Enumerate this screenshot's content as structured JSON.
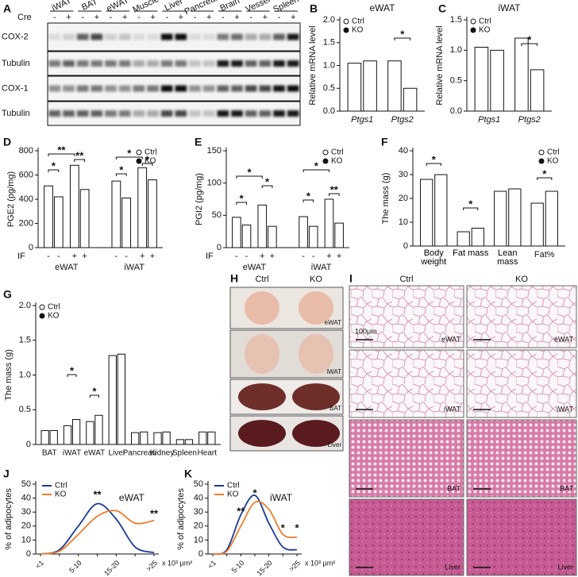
{
  "blot": {
    "panel": "A",
    "tissues": [
      "iWAT",
      "BAT",
      "eWAT",
      "Muscle",
      "Liver",
      "Pancreas",
      "Brain",
      "Vessel",
      "Spleen"
    ],
    "cre_label": "Cre",
    "cre": [
      "-",
      "+"
    ],
    "rows": [
      "COX-2",
      "Tubulin",
      "COX-1",
      "Tubulin"
    ]
  },
  "chart_data": [
    {
      "type": "bar",
      "panel": "B",
      "title": "eWAT",
      "y_label": "Relative mRNA level",
      "categories": [
        "Ptgs1",
        "Ptgs2"
      ],
      "category_style": "italic",
      "series": [
        {
          "name": "Ctrl",
          "marker": "open",
          "values": [
            1.05,
            1.1
          ]
        },
        {
          "name": "KO",
          "marker": "filled",
          "values": [
            1.1,
            0.5
          ]
        }
      ],
      "ylim": [
        0,
        2
      ],
      "yticks": [
        {
          "value": 0,
          "label": "0.0"
        },
        0.5,
        {
          "value": 1,
          "label": "1.0"
        },
        1.5,
        {
          "value": 2,
          "label": "2.0"
        }
      ],
      "legend": "upper left",
      "annotations": [
        "*"
      ]
    },
    {
      "type": "bar",
      "panel": "C",
      "title": "iWAT",
      "y_label": "Relative mRNA level",
      "categories": [
        "Ptgs1",
        "Ptgs2"
      ],
      "category_style": "italic",
      "series": [
        {
          "name": "Ctrl",
          "marker": "open",
          "values": [
            1.05,
            1.2
          ]
        },
        {
          "name": "KO",
          "marker": "filled",
          "values": [
            1.0,
            0.68
          ]
        }
      ],
      "ylim": [
        0,
        1.5
      ],
      "yticks": [
        {
          "value": 0,
          "label": "0.0"
        },
        0.5,
        {
          "value": 1,
          "label": "1.0"
        },
        1.5
      ],
      "legend": "upper left",
      "annotations": [
        "*"
      ]
    },
    {
      "type": "bar",
      "panel": "D",
      "y_label": "PGE2 (pg/mg)",
      "x_row_label": "IF",
      "categories": [
        "-",
        "+",
        "-",
        "+"
      ],
      "groups": [
        "eWAT",
        "iWAT"
      ],
      "series": [
        {
          "name": "Ctrl",
          "marker": "open",
          "values": [
            510,
            680,
            550,
            660
          ]
        },
        {
          "name": "KO",
          "marker": "filled",
          "values": [
            420,
            480,
            410,
            560
          ]
        }
      ],
      "ylim": [
        0,
        800
      ],
      "yticks": [
        0,
        200,
        400,
        600,
        800
      ],
      "legend": "upper right",
      "annotations": [
        "*",
        "**",
        "**",
        "*",
        "*",
        "*"
      ]
    },
    {
      "type": "bar",
      "panel": "E",
      "y_label": "PGI2 (pg/mg)",
      "x_row_label": "IF",
      "categories": [
        "-",
        "+",
        "-",
        "+"
      ],
      "groups": [
        "eWAT",
        "iWAT"
      ],
      "series": [
        {
          "name": "Ctrl",
          "marker": "open",
          "values": [
            47,
            66,
            48,
            75
          ]
        },
        {
          "name": "KO",
          "marker": "filled",
          "values": [
            35,
            33,
            33,
            38
          ]
        }
      ],
      "ylim": [
        0,
        150
      ],
      "yticks": [
        0,
        50,
        100,
        150
      ],
      "legend": "upper right",
      "annotations": [
        "*",
        "*",
        "*",
        "*",
        "*",
        "**"
      ]
    },
    {
      "type": "bar",
      "panel": "F",
      "y_label": "The mass (g)",
      "categories": [
        "Body weight",
        "Fat mass",
        "Lean mass",
        "Fat%"
      ],
      "series": [
        {
          "name": "Ctrl",
          "marker": "open",
          "values": [
            28,
            6,
            23,
            18
          ]
        },
        {
          "name": "KO",
          "marker": "filled",
          "values": [
            30,
            7.5,
            24,
            23
          ]
        }
      ],
      "ylim": [
        0,
        40
      ],
      "yticks": [
        0,
        10,
        20,
        30,
        40
      ],
      "legend": "upper right",
      "annotations": [
        "*",
        "*",
        "*"
      ]
    },
    {
      "type": "bar",
      "panel": "G",
      "y_label": "The mass (g)",
      "categories": [
        "BAT",
        "iWAT",
        "eWAT",
        "Liver",
        "Pancreas",
        "Kidney",
        "Spleen",
        "Heart"
      ],
      "series": [
        {
          "name": "Ctrl",
          "marker": "open",
          "values": [
            0.2,
            0.27,
            0.33,
            1.28,
            0.17,
            0.17,
            0.07,
            0.18
          ]
        },
        {
          "name": "KO",
          "marker": "filled",
          "values": [
            0.2,
            0.36,
            0.42,
            1.3,
            0.18,
            0.18,
            0.07,
            0.18
          ]
        }
      ],
      "ylim": [
        0,
        2
      ],
      "yticks": [
        0,
        0.5,
        {
          "value": 1,
          "label": "1.0"
        },
        1.5,
        {
          "value": 2,
          "label": "2.0"
        }
      ],
      "legend": "upper left",
      "annotations": [
        "*",
        "*"
      ]
    },
    {
      "type": "line",
      "panel": "J",
      "title": "eWAT",
      "y_label": "% of adipocytes",
      "x_label": "x 10³ μm²",
      "categories": [
        "<1",
        null,
        "5-10",
        null,
        "15-20",
        null,
        ">25"
      ],
      "series": [
        {
          "name": "Ctrl",
          "color": "#1c3a96",
          "values": [
            0,
            3,
            20,
            36,
            25,
            5,
            1
          ]
        },
        {
          "name": "KO",
          "color": "#f07b2c",
          "values": [
            0,
            2,
            14,
            27,
            31,
            22,
            24
          ]
        }
      ],
      "ylim": [
        0,
        50
      ],
      "yticks": [
        0,
        10,
        20,
        30,
        40,
        50
      ],
      "legend": "upper left",
      "annotations": [
        "**",
        "**"
      ]
    },
    {
      "type": "line",
      "panel": "K",
      "title": "iWAT",
      "y_label": "% of adipocytes",
      "x_label": "x 10³ μm²",
      "categories": [
        "<1",
        null,
        "5-10",
        null,
        "15-20",
        null,
        ">25"
      ],
      "series": [
        {
          "name": "Ctrl",
          "color": "#1c3a96",
          "values": [
            0,
            3,
            28,
            42,
            22,
            5,
            3
          ]
        },
        {
          "name": "KO",
          "color": "#f07b2c",
          "values": [
            0,
            2,
            20,
            37,
            32,
            14,
            12
          ]
        }
      ],
      "ylim": [
        0,
        50
      ],
      "yticks": [
        0,
        10,
        20,
        30,
        40,
        50
      ],
      "legend": "upper left",
      "annotations": [
        "**",
        "*",
        "*",
        "*"
      ]
    }
  ],
  "photos": {
    "panel": "H",
    "columns": [
      "Ctrl",
      "KO"
    ],
    "rows": [
      "eWAT",
      "iWAT",
      "BAT",
      "Liver"
    ]
  },
  "histology": {
    "panel": "I",
    "columns": [
      "Ctrl",
      "KO"
    ],
    "rows": [
      "eWAT",
      "iWAT",
      "BAT",
      "Liver"
    ],
    "scale_bar": "100μm"
  }
}
